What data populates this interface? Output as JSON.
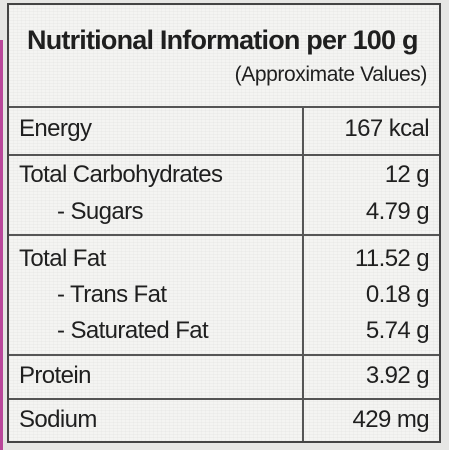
{
  "title": "Nutritional Information per 100 g",
  "subtitle": "(Approximate Values)",
  "rows": [
    {
      "label": "Energy",
      "value": "167 kcal"
    },
    {
      "label": "Total Carbohydrates",
      "value": "12 g"
    },
    {
      "label": "- Sugars",
      "value": "4.79 g"
    },
    {
      "label": "Total Fat",
      "value": "11.52 g"
    },
    {
      "label": "- Trans Fat",
      "value": "0.18 g"
    },
    {
      "label": "- Saturated Fat",
      "value": "5.74 g"
    },
    {
      "label": "Protein",
      "value": "3.92 g"
    },
    {
      "label": "Sodium",
      "value": "429 mg"
    }
  ],
  "colors": {
    "accent_stripe": "#b9479a",
    "border": "#444444",
    "panel_background": "#f4f4f2"
  }
}
